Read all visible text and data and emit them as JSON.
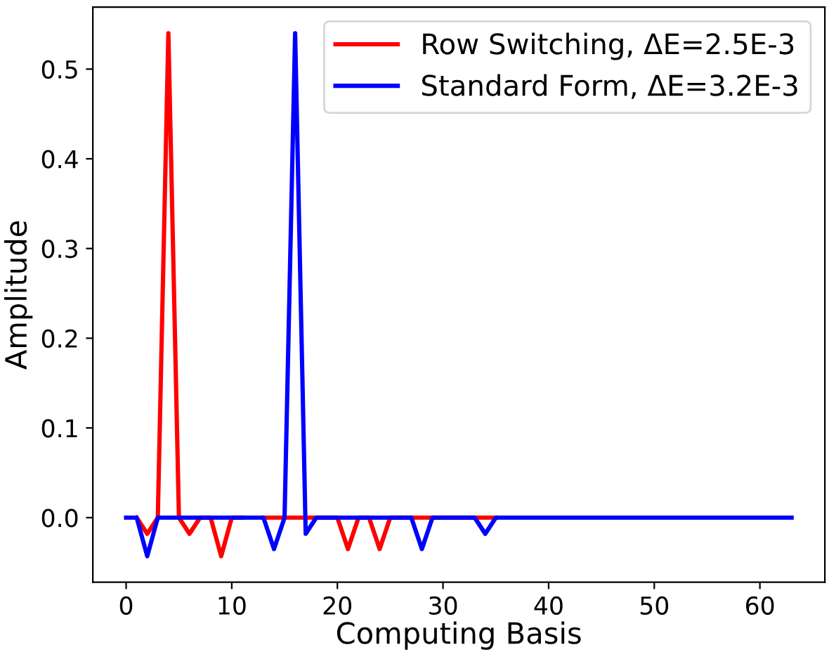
{
  "chart_data": {
    "type": "line",
    "xlabel": "Computing Basis",
    "ylabel": "Amplitude",
    "x": [
      0,
      1,
      2,
      3,
      4,
      5,
      6,
      7,
      8,
      9,
      10,
      11,
      12,
      13,
      14,
      15,
      16,
      17,
      18,
      19,
      20,
      21,
      22,
      23,
      24,
      25,
      26,
      27,
      28,
      29,
      30,
      31,
      32,
      33,
      34,
      35,
      36,
      37,
      38,
      39,
      40,
      41,
      42,
      43,
      44,
      45,
      46,
      47,
      48,
      49,
      50,
      51,
      52,
      53,
      54,
      55,
      56,
      57,
      58,
      59,
      60,
      61,
      62,
      63
    ],
    "series": [
      {
        "name": "Row Switching, ΔE=2.5E-3",
        "color": "#ff0000",
        "values": [
          null,
          0,
          -0.018,
          0,
          0.54,
          0,
          -0.018,
          0,
          0,
          -0.043,
          0,
          0,
          null,
          0,
          0,
          0,
          0,
          0,
          0,
          0,
          0,
          -0.035,
          0,
          0,
          -0.035,
          0,
          0,
          0,
          0,
          0,
          0,
          0,
          0,
          0,
          0,
          0,
          null,
          null,
          null,
          null,
          null,
          null,
          null,
          null,
          null,
          null,
          null,
          null,
          null,
          null,
          null,
          null,
          null,
          null,
          null,
          null,
          null,
          null,
          null,
          null,
          null,
          null,
          null,
          null
        ]
      },
      {
        "name": "Standard Form, ΔE=3.2E-3",
        "color": "#0000ff",
        "values": [
          0,
          0,
          -0.043,
          0,
          0,
          0,
          0,
          0,
          0,
          0,
          0,
          0,
          0,
          0,
          -0.035,
          0,
          0.54,
          -0.018,
          0,
          0,
          0,
          0,
          0,
          0,
          0,
          0,
          0,
          0,
          -0.035,
          0,
          0,
          0,
          0,
          0,
          -0.018,
          0,
          0,
          0,
          0,
          0,
          0,
          0,
          0,
          0,
          0,
          0,
          0,
          0,
          0,
          0,
          0,
          0,
          0,
          0,
          0,
          0,
          0,
          0,
          0,
          0,
          0,
          0,
          0,
          0
        ]
      }
    ],
    "xlim": [
      -3.15,
      66.15
    ],
    "ylim": [
      -0.072,
      0.569
    ],
    "xticks": [
      0,
      10,
      20,
      30,
      40,
      50,
      60
    ],
    "yticks": [
      {
        "value": 0,
        "label": "0.0"
      },
      {
        "value": 0.1,
        "label": "0.1"
      },
      {
        "value": 0.2,
        "label": "0.2"
      },
      {
        "value": 0.3,
        "label": "0.3"
      },
      {
        "value": 0.4,
        "label": "0.4"
      },
      {
        "value": 0.5,
        "label": "0.5"
      }
    ],
    "legend": "top right",
    "grid": false
  }
}
